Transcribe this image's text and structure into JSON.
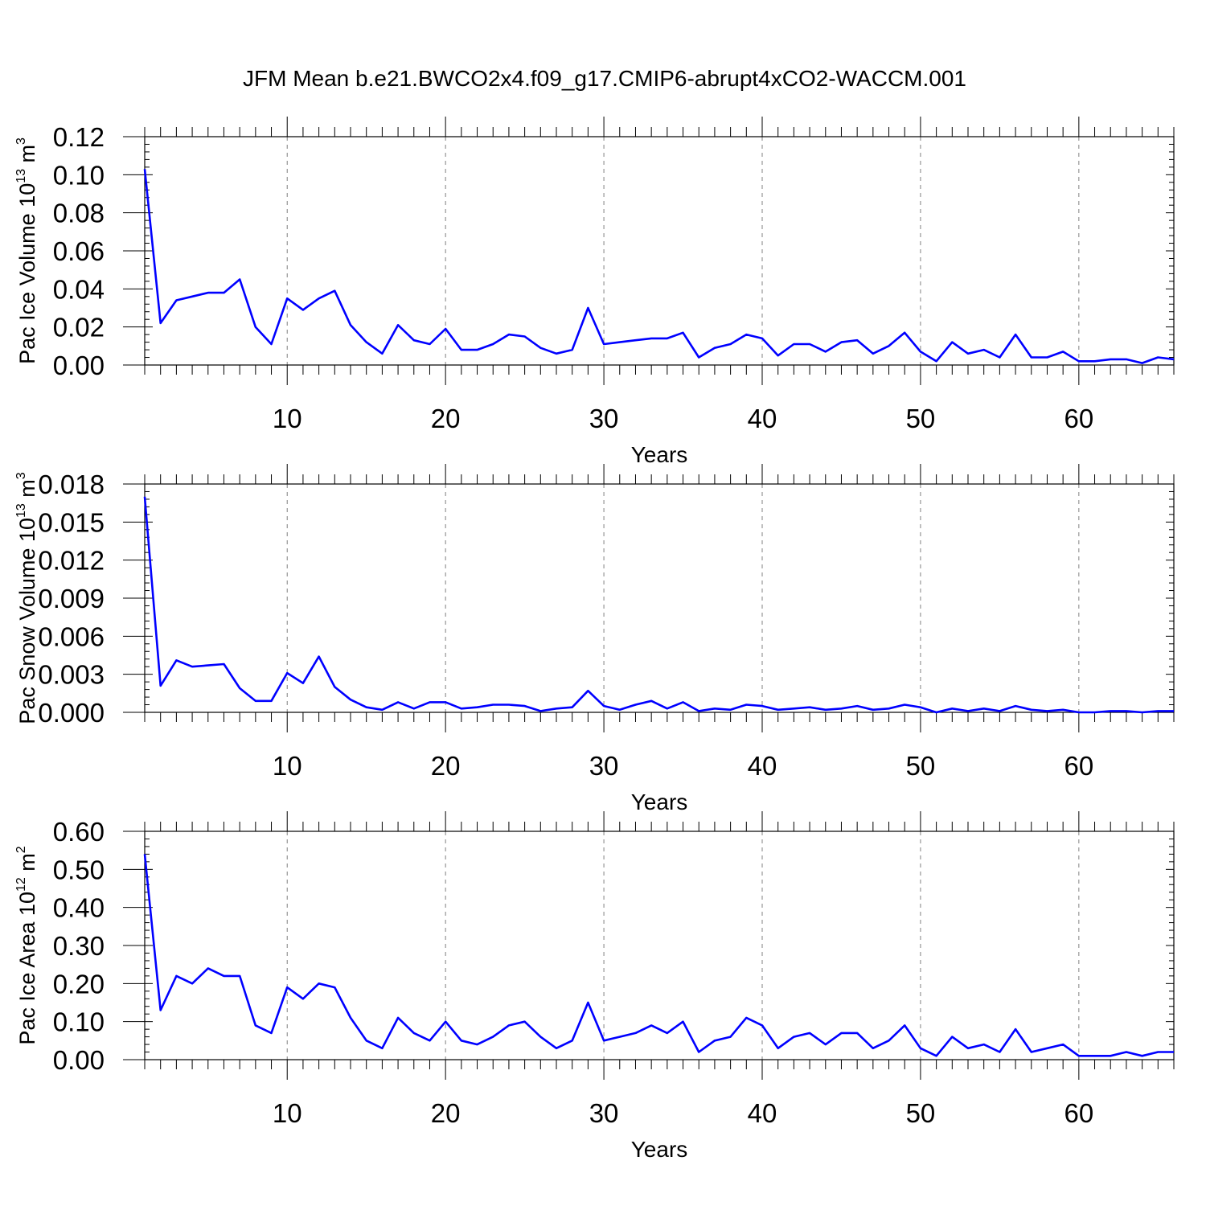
{
  "title": "JFM Mean b.e21.BWCO2x4.f09_g17.CMIP6-abrupt4xCO2-WACCM.001",
  "chart_data": [
    {
      "type": "line",
      "ylabel": {
        "main": "Pac Ice Volume 10",
        "sup": "13",
        "unit": " m",
        "unit_sup": "3"
      },
      "xlabel": "Years",
      "xlim": [
        1,
        66
      ],
      "ylim": [
        0,
        0.12
      ],
      "xticks": [
        10,
        20,
        30,
        40,
        50,
        60
      ],
      "xtick_labels": [
        "10",
        "20",
        "30",
        "40",
        "50",
        "60"
      ],
      "yticks": [
        0,
        0.02,
        0.04,
        0.06,
        0.08,
        0.1,
        0.12
      ],
      "ytick_labels": [
        "0.00",
        "0.02",
        "0.04",
        "0.06",
        "0.08",
        "0.10",
        "0.12"
      ],
      "grid": "vertical-dashed",
      "color": "#0000ff",
      "x": [
        1,
        2,
        3,
        4,
        5,
        6,
        7,
        8,
        9,
        10,
        11,
        12,
        13,
        14,
        15,
        16,
        17,
        18,
        19,
        20,
        21,
        22,
        23,
        24,
        25,
        26,
        27,
        28,
        29,
        30,
        31,
        32,
        33,
        34,
        35,
        36,
        37,
        38,
        39,
        40,
        41,
        42,
        43,
        44,
        45,
        46,
        47,
        48,
        49,
        50,
        51,
        52,
        53,
        54,
        55,
        56,
        57,
        58,
        59,
        60,
        61,
        62,
        63,
        64,
        65,
        66
      ],
      "y": [
        0.103,
        0.022,
        0.034,
        0.036,
        0.038,
        0.038,
        0.045,
        0.02,
        0.011,
        0.035,
        0.029,
        0.035,
        0.039,
        0.021,
        0.012,
        0.006,
        0.021,
        0.013,
        0.011,
        0.019,
        0.008,
        0.008,
        0.011,
        0.016,
        0.015,
        0.009,
        0.006,
        0.008,
        0.03,
        0.011,
        0.012,
        0.013,
        0.014,
        0.014,
        0.017,
        0.004,
        0.009,
        0.011,
        0.016,
        0.014,
        0.005,
        0.011,
        0.011,
        0.007,
        0.012,
        0.013,
        0.006,
        0.01,
        0.017,
        0.007,
        0.002,
        0.012,
        0.006,
        0.008,
        0.004,
        0.016,
        0.004,
        0.004,
        0.007,
        0.002,
        0.002,
        0.003,
        0.003,
        0.001,
        0.004,
        0.003
      ]
    },
    {
      "type": "line",
      "ylabel": {
        "main": "Pac Snow Volume 10",
        "sup": "13",
        "unit": " m",
        "unit_sup": "3"
      },
      "xlabel": "Years",
      "xlim": [
        1,
        66
      ],
      "ylim": [
        0,
        0.018
      ],
      "xticks": [
        10,
        20,
        30,
        40,
        50,
        60
      ],
      "xtick_labels": [
        "10",
        "20",
        "30",
        "40",
        "50",
        "60"
      ],
      "yticks": [
        0,
        0.003,
        0.006,
        0.009,
        0.012,
        0.015,
        0.018
      ],
      "ytick_labels": [
        "0.000",
        "0.003",
        "0.006",
        "0.009",
        "0.012",
        "0.015",
        "0.018"
      ],
      "grid": "vertical-dashed",
      "color": "#0000ff",
      "x": [
        1,
        2,
        3,
        4,
        5,
        6,
        7,
        8,
        9,
        10,
        11,
        12,
        13,
        14,
        15,
        16,
        17,
        18,
        19,
        20,
        21,
        22,
        23,
        24,
        25,
        26,
        27,
        28,
        29,
        30,
        31,
        32,
        33,
        34,
        35,
        36,
        37,
        38,
        39,
        40,
        41,
        42,
        43,
        44,
        45,
        46,
        47,
        48,
        49,
        50,
        51,
        52,
        53,
        54,
        55,
        56,
        57,
        58,
        59,
        60,
        61,
        62,
        63,
        64,
        65,
        66
      ],
      "y": [
        0.017,
        0.0021,
        0.0041,
        0.0036,
        0.0037,
        0.0038,
        0.0019,
        0.0009,
        0.0009,
        0.0031,
        0.0023,
        0.0044,
        0.002,
        0.001,
        0.0004,
        0.0002,
        0.0008,
        0.0003,
        0.0008,
        0.0008,
        0.0003,
        0.0004,
        0.0006,
        0.0006,
        0.0005,
        0.0001,
        0.0003,
        0.0004,
        0.0017,
        0.0005,
        0.0002,
        0.0006,
        0.0009,
        0.0003,
        0.0008,
        0.0001,
        0.0003,
        0.0002,
        0.0006,
        0.0005,
        0.0002,
        0.0003,
        0.0004,
        0.0002,
        0.0003,
        0.0005,
        0.0002,
        0.0003,
        0.0006,
        0.0004,
        0.0,
        0.0003,
        0.0001,
        0.0003,
        0.0001,
        0.0005,
        0.0002,
        0.0001,
        0.0002,
        0.0,
        0.0,
        0.0001,
        0.0001,
        0.0,
        0.0001,
        0.0001
      ]
    },
    {
      "type": "line",
      "ylabel": {
        "main": "Pac Ice Area 10",
        "sup": "12",
        "unit": " m",
        "unit_sup": "2"
      },
      "xlabel": "Years",
      "xlim": [
        1,
        66
      ],
      "ylim": [
        0,
        0.6
      ],
      "xticks": [
        10,
        20,
        30,
        40,
        50,
        60
      ],
      "xtick_labels": [
        "10",
        "20",
        "30",
        "40",
        "50",
        "60"
      ],
      "yticks": [
        0,
        0.1,
        0.2,
        0.3,
        0.4,
        0.5,
        0.6
      ],
      "ytick_labels": [
        "0.00",
        "0.10",
        "0.20",
        "0.30",
        "0.40",
        "0.50",
        "0.60"
      ],
      "grid": "vertical-dashed",
      "color": "#0000ff",
      "x": [
        1,
        2,
        3,
        4,
        5,
        6,
        7,
        8,
        9,
        10,
        11,
        12,
        13,
        14,
        15,
        16,
        17,
        18,
        19,
        20,
        21,
        22,
        23,
        24,
        25,
        26,
        27,
        28,
        29,
        30,
        31,
        32,
        33,
        34,
        35,
        36,
        37,
        38,
        39,
        40,
        41,
        42,
        43,
        44,
        45,
        46,
        47,
        48,
        49,
        50,
        51,
        52,
        53,
        54,
        55,
        56,
        57,
        58,
        59,
        60,
        61,
        62,
        63,
        64,
        65,
        66
      ],
      "y": [
        0.54,
        0.13,
        0.22,
        0.2,
        0.24,
        0.22,
        0.22,
        0.09,
        0.07,
        0.19,
        0.16,
        0.2,
        0.19,
        0.11,
        0.05,
        0.03,
        0.11,
        0.07,
        0.05,
        0.1,
        0.05,
        0.04,
        0.06,
        0.09,
        0.1,
        0.06,
        0.03,
        0.05,
        0.15,
        0.05,
        0.06,
        0.07,
        0.09,
        0.07,
        0.1,
        0.02,
        0.05,
        0.06,
        0.11,
        0.09,
        0.03,
        0.06,
        0.07,
        0.04,
        0.07,
        0.07,
        0.03,
        0.05,
        0.09,
        0.03,
        0.01,
        0.06,
        0.03,
        0.04,
        0.02,
        0.08,
        0.02,
        0.03,
        0.04,
        0.01,
        0.01,
        0.01,
        0.02,
        0.01,
        0.02,
        0.02
      ]
    }
  ]
}
